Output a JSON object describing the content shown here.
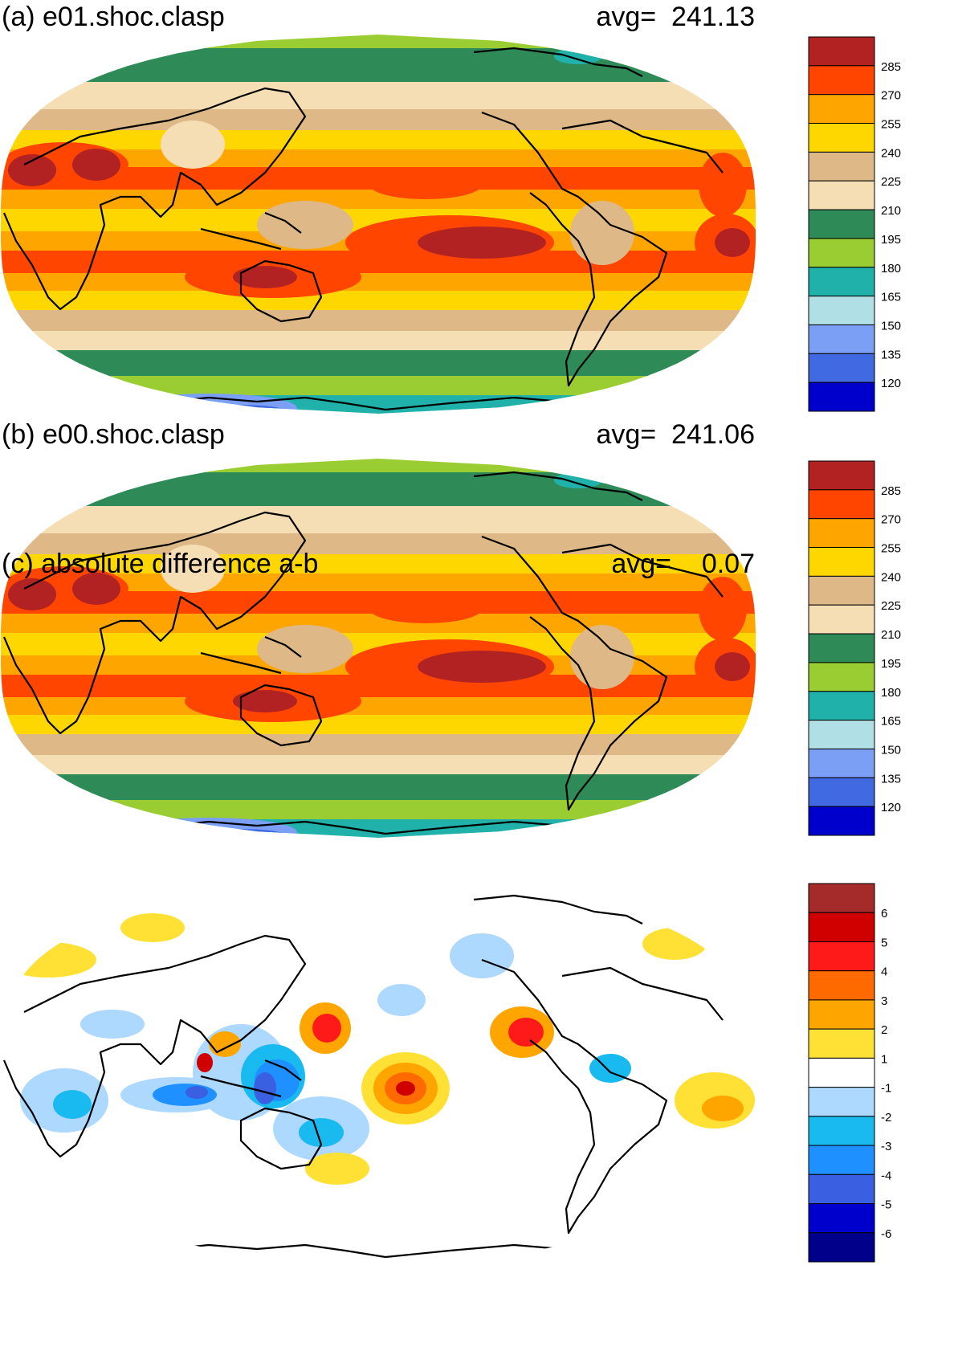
{
  "panels": [
    {
      "title": "(a) e01.shoc.clasp",
      "avg_label": "avg=",
      "avg_value": "241.13",
      "colorbar": {
        "labels": [
          "285",
          "270",
          "255",
          "240",
          "225",
          "210",
          "195",
          "180",
          "165",
          "150",
          "135",
          "120"
        ],
        "colors": [
          "#b22222",
          "#ff4500",
          "#ffa500",
          "#ffd700",
          "#deb887",
          "#f5deb3",
          "#2e8b57",
          "#9acd32",
          "#20b2aa",
          "#b0e0e6",
          "#7b9ff5",
          "#4169e1",
          "#0000cd"
        ]
      }
    },
    {
      "title": "(b) e00.shoc.clasp",
      "avg_label": "avg=",
      "avg_value": "241.06",
      "colorbar": {
        "labels": [
          "285",
          "270",
          "255",
          "240",
          "225",
          "210",
          "195",
          "180",
          "165",
          "150",
          "135",
          "120"
        ],
        "colors": [
          "#b22222",
          "#ff4500",
          "#ffa500",
          "#ffd700",
          "#deb887",
          "#f5deb3",
          "#2e8b57",
          "#9acd32",
          "#20b2aa",
          "#b0e0e6",
          "#7b9ff5",
          "#4169e1",
          "#0000cd"
        ]
      }
    },
    {
      "title": "(c) absolute difference a-b",
      "avg_label": "avg=",
      "avg_value": "0.07",
      "colorbar": {
        "labels": [
          "6",
          "5",
          "4",
          "3",
          "2",
          "1",
          "-1",
          "-2",
          "-3",
          "-4",
          "-5",
          "-6"
        ],
        "colors": [
          "#a52a2a",
          "#d00000",
          "#ff1a1a",
          "#ff6a00",
          "#ffa500",
          "#ffe135",
          "#ffffff",
          "#add8ff",
          "#19baf0",
          "#1e90ff",
          "#3a5fe0",
          "#0000cd",
          "#00008b"
        ]
      }
    }
  ]
}
